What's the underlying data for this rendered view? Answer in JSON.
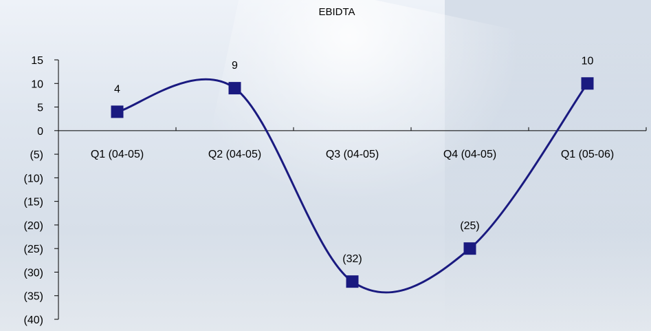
{
  "chart_data": {
    "type": "line",
    "title": "EBIDTA",
    "categories": [
      "Q1 (04-05)",
      "Q2 (04-05)",
      "Q3 (04-05)",
      "Q4 (04-05)",
      "Q1 (05-06)"
    ],
    "series": [
      {
        "values": [
          4,
          9,
          -32,
          -25,
          10
        ],
        "color": "#1a1a80"
      }
    ],
    "data_labels": [
      "4",
      "9",
      "(32)",
      "(25)",
      "10"
    ],
    "y_ticks": [
      15,
      10,
      5,
      0,
      -5,
      -10,
      -15,
      -20,
      -25,
      -30,
      -35,
      -40
    ],
    "y_tick_labels": [
      "15",
      "10",
      "5",
      "0",
      "(5)",
      "(10)",
      "(15)",
      "(20)",
      "(25)",
      "(30)",
      "(35)",
      "(40)"
    ],
    "ylim": [
      -40,
      15
    ],
    "smooth": true,
    "marker": "square",
    "grid": false,
    "legend": "none"
  }
}
